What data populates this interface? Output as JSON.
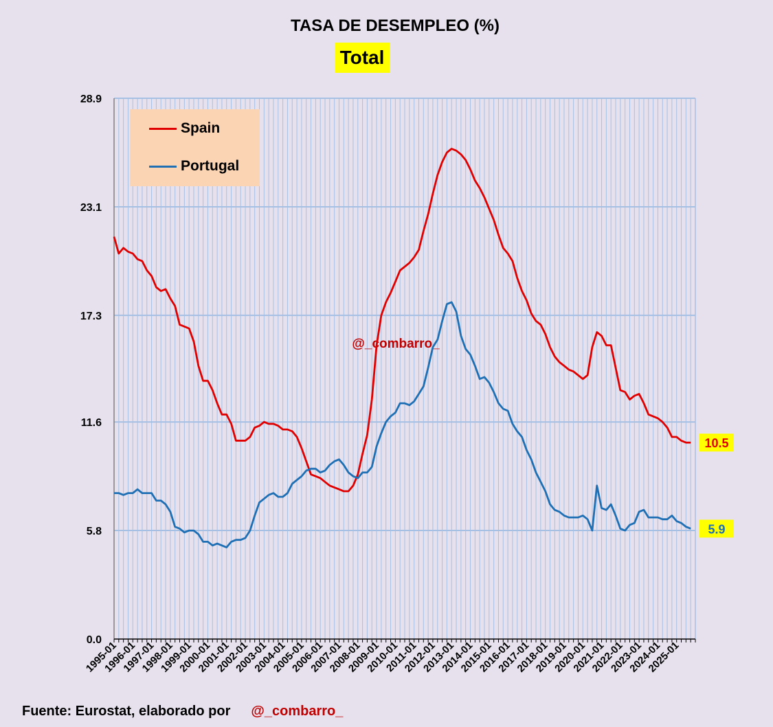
{
  "header": {
    "title": "TASA DE DESEMPLEO (%)",
    "subtitle": "Total"
  },
  "footer": {
    "source": "Fuente: Eurostat, elaborado por",
    "handle": "@_combarro_"
  },
  "watermark": "@_combarro_",
  "colors": {
    "spain": "#e00000",
    "portugal": "#1f6fb4",
    "grid": "#a6c0e4",
    "highlight": "#ffff00"
  },
  "chart_data": {
    "type": "line",
    "title": "TASA DE DESEMPLEO (%)",
    "subtitle": "Total",
    "x_tick_labels": [
      "1995-01",
      "1996-01",
      "1997-01",
      "1998-01",
      "1999-01",
      "2000-01",
      "2001-01",
      "2002-01",
      "2003-01",
      "2004-01",
      "2005-01",
      "2006-01",
      "2007-01",
      "2008-01",
      "2009-01",
      "2010-01",
      "2011-01",
      "2012-01",
      "2013-01",
      "2014-01",
      "2015-01",
      "2016-01",
      "2017-01",
      "2018-01",
      "2019-01",
      "2020-01",
      "2021-01",
      "2022-01",
      "2023-01",
      "2024-01",
      "2025-01"
    ],
    "y_ticks": [
      "0.0",
      "5.8",
      "11.6",
      "17.3",
      "23.1",
      "28.9"
    ],
    "y_tick_values": [
      0.0,
      5.8,
      11.6,
      17.3,
      23.1,
      28.9
    ],
    "ylim": [
      0,
      28.9
    ],
    "xlim": [
      1995.0,
      2026.0
    ],
    "legend": {
      "position": "top-left"
    },
    "series": [
      {
        "name": "Spain",
        "color": "#e00000",
        "end_label": "10.5",
        "points": [
          [
            1995.0,
            21.5
          ],
          [
            1995.25,
            20.6
          ],
          [
            1995.5,
            20.9
          ],
          [
            1995.75,
            20.7
          ],
          [
            1996.0,
            20.6
          ],
          [
            1996.25,
            20.3
          ],
          [
            1996.5,
            20.2
          ],
          [
            1996.75,
            19.7
          ],
          [
            1997.0,
            19.4
          ],
          [
            1997.25,
            18.8
          ],
          [
            1997.5,
            18.6
          ],
          [
            1997.75,
            18.7
          ],
          [
            1998.0,
            18.2
          ],
          [
            1998.25,
            17.8
          ],
          [
            1998.5,
            16.8
          ],
          [
            1998.75,
            16.7
          ],
          [
            1999.0,
            16.6
          ],
          [
            1999.25,
            15.9
          ],
          [
            1999.5,
            14.6
          ],
          [
            1999.75,
            13.8
          ],
          [
            2000.0,
            13.8
          ],
          [
            2000.25,
            13.3
          ],
          [
            2000.5,
            12.6
          ],
          [
            2000.75,
            12.0
          ],
          [
            2001.0,
            12.0
          ],
          [
            2001.25,
            11.5
          ],
          [
            2001.5,
            10.6
          ],
          [
            2001.75,
            10.6
          ],
          [
            2002.0,
            10.6
          ],
          [
            2002.25,
            10.8
          ],
          [
            2002.5,
            11.3
          ],
          [
            2002.75,
            11.4
          ],
          [
            2003.0,
            11.6
          ],
          [
            2003.25,
            11.5
          ],
          [
            2003.5,
            11.5
          ],
          [
            2003.75,
            11.4
          ],
          [
            2004.0,
            11.2
          ],
          [
            2004.25,
            11.2
          ],
          [
            2004.5,
            11.1
          ],
          [
            2004.75,
            10.8
          ],
          [
            2005.0,
            10.2
          ],
          [
            2005.25,
            9.5
          ],
          [
            2005.5,
            8.8
          ],
          [
            2005.75,
            8.7
          ],
          [
            2006.0,
            8.6
          ],
          [
            2006.25,
            8.4
          ],
          [
            2006.5,
            8.2
          ],
          [
            2006.75,
            8.1
          ],
          [
            2007.0,
            8.0
          ],
          [
            2007.25,
            7.9
          ],
          [
            2007.5,
            7.9
          ],
          [
            2007.75,
            8.2
          ],
          [
            2008.0,
            8.8
          ],
          [
            2008.25,
            9.9
          ],
          [
            2008.5,
            10.9
          ],
          [
            2008.75,
            12.8
          ],
          [
            2009.0,
            15.7
          ],
          [
            2009.25,
            17.3
          ],
          [
            2009.5,
            18.0
          ],
          [
            2009.75,
            18.5
          ],
          [
            2010.0,
            19.1
          ],
          [
            2010.25,
            19.7
          ],
          [
            2010.5,
            19.9
          ],
          [
            2010.75,
            20.1
          ],
          [
            2011.0,
            20.4
          ],
          [
            2011.25,
            20.8
          ],
          [
            2011.5,
            21.8
          ],
          [
            2011.75,
            22.7
          ],
          [
            2012.0,
            23.8
          ],
          [
            2012.25,
            24.8
          ],
          [
            2012.5,
            25.5
          ],
          [
            2012.75,
            26.0
          ],
          [
            2013.0,
            26.2
          ],
          [
            2013.25,
            26.1
          ],
          [
            2013.5,
            25.9
          ],
          [
            2013.75,
            25.6
          ],
          [
            2014.0,
            25.1
          ],
          [
            2014.25,
            24.5
          ],
          [
            2014.5,
            24.1
          ],
          [
            2014.75,
            23.6
          ],
          [
            2015.0,
            23.0
          ],
          [
            2015.25,
            22.4
          ],
          [
            2015.5,
            21.6
          ],
          [
            2015.75,
            20.9
          ],
          [
            2016.0,
            20.6
          ],
          [
            2016.25,
            20.2
          ],
          [
            2016.5,
            19.3
          ],
          [
            2016.75,
            18.6
          ],
          [
            2017.0,
            18.1
          ],
          [
            2017.25,
            17.4
          ],
          [
            2017.5,
            17.0
          ],
          [
            2017.75,
            16.8
          ],
          [
            2018.0,
            16.3
          ],
          [
            2018.25,
            15.6
          ],
          [
            2018.5,
            15.1
          ],
          [
            2018.75,
            14.8
          ],
          [
            2019.0,
            14.6
          ],
          [
            2019.25,
            14.4
          ],
          [
            2019.5,
            14.3
          ],
          [
            2019.75,
            14.1
          ],
          [
            2020.0,
            13.9
          ],
          [
            2020.25,
            14.1
          ],
          [
            2020.5,
            15.6
          ],
          [
            2020.75,
            16.4
          ],
          [
            2021.0,
            16.2
          ],
          [
            2021.25,
            15.7
          ],
          [
            2021.5,
            15.7
          ],
          [
            2021.75,
            14.5
          ],
          [
            2022.0,
            13.3
          ],
          [
            2022.25,
            13.2
          ],
          [
            2022.5,
            12.8
          ],
          [
            2022.75,
            13.0
          ],
          [
            2023.0,
            13.1
          ],
          [
            2023.25,
            12.6
          ],
          [
            2023.5,
            12.0
          ],
          [
            2023.75,
            11.9
          ],
          [
            2024.0,
            11.8
          ],
          [
            2024.25,
            11.6
          ],
          [
            2024.5,
            11.3
          ],
          [
            2024.75,
            10.8
          ],
          [
            2025.0,
            10.8
          ],
          [
            2025.25,
            10.6
          ],
          [
            2025.5,
            10.5
          ],
          [
            2025.75,
            10.5
          ]
        ]
      },
      {
        "name": "Portugal",
        "color": "#1f6fb4",
        "end_label": "5.9",
        "points": [
          [
            1995.0,
            7.8
          ],
          [
            1995.25,
            7.8
          ],
          [
            1995.5,
            7.7
          ],
          [
            1995.75,
            7.8
          ],
          [
            1996.0,
            7.8
          ],
          [
            1996.25,
            8.0
          ],
          [
            1996.5,
            7.8
          ],
          [
            1996.75,
            7.8
          ],
          [
            1997.0,
            7.8
          ],
          [
            1997.25,
            7.4
          ],
          [
            1997.5,
            7.4
          ],
          [
            1997.75,
            7.2
          ],
          [
            1998.0,
            6.8
          ],
          [
            1998.25,
            6.0
          ],
          [
            1998.5,
            5.9
          ],
          [
            1998.75,
            5.7
          ],
          [
            1999.0,
            5.8
          ],
          [
            1999.25,
            5.8
          ],
          [
            1999.5,
            5.6
          ],
          [
            1999.75,
            5.2
          ],
          [
            2000.0,
            5.2
          ],
          [
            2000.25,
            5.0
          ],
          [
            2000.5,
            5.1
          ],
          [
            2000.75,
            5.0
          ],
          [
            2001.0,
            4.9
          ],
          [
            2001.25,
            5.2
          ],
          [
            2001.5,
            5.3
          ],
          [
            2001.75,
            5.3
          ],
          [
            2002.0,
            5.4
          ],
          [
            2002.25,
            5.8
          ],
          [
            2002.5,
            6.6
          ],
          [
            2002.75,
            7.3
          ],
          [
            2003.0,
            7.5
          ],
          [
            2003.25,
            7.7
          ],
          [
            2003.5,
            7.8
          ],
          [
            2003.75,
            7.6
          ],
          [
            2004.0,
            7.6
          ],
          [
            2004.25,
            7.8
          ],
          [
            2004.5,
            8.3
          ],
          [
            2004.75,
            8.5
          ],
          [
            2005.0,
            8.7
          ],
          [
            2005.25,
            9.0
          ],
          [
            2005.5,
            9.1
          ],
          [
            2005.75,
            9.1
          ],
          [
            2006.0,
            8.9
          ],
          [
            2006.25,
            9.0
          ],
          [
            2006.5,
            9.3
          ],
          [
            2006.75,
            9.5
          ],
          [
            2007.0,
            9.6
          ],
          [
            2007.25,
            9.3
          ],
          [
            2007.5,
            8.9
          ],
          [
            2007.75,
            8.7
          ],
          [
            2008.0,
            8.6
          ],
          [
            2008.25,
            8.9
          ],
          [
            2008.5,
            8.9
          ],
          [
            2008.75,
            9.2
          ],
          [
            2009.0,
            10.3
          ],
          [
            2009.25,
            11.0
          ],
          [
            2009.5,
            11.6
          ],
          [
            2009.75,
            11.9
          ],
          [
            2010.0,
            12.1
          ],
          [
            2010.25,
            12.6
          ],
          [
            2010.5,
            12.6
          ],
          [
            2010.75,
            12.5
          ],
          [
            2011.0,
            12.7
          ],
          [
            2011.25,
            13.1
          ],
          [
            2011.5,
            13.5
          ],
          [
            2011.75,
            14.5
          ],
          [
            2012.0,
            15.6
          ],
          [
            2012.25,
            16.0
          ],
          [
            2012.5,
            17.0
          ],
          [
            2012.75,
            17.9
          ],
          [
            2013.0,
            18.0
          ],
          [
            2013.25,
            17.5
          ],
          [
            2013.5,
            16.2
          ],
          [
            2013.75,
            15.5
          ],
          [
            2014.0,
            15.2
          ],
          [
            2014.25,
            14.6
          ],
          [
            2014.5,
            13.9
          ],
          [
            2014.75,
            14.0
          ],
          [
            2015.0,
            13.7
          ],
          [
            2015.25,
            13.2
          ],
          [
            2015.5,
            12.6
          ],
          [
            2015.75,
            12.3
          ],
          [
            2016.0,
            12.2
          ],
          [
            2016.25,
            11.5
          ],
          [
            2016.5,
            11.1
          ],
          [
            2016.75,
            10.8
          ],
          [
            2017.0,
            10.1
          ],
          [
            2017.25,
            9.6
          ],
          [
            2017.5,
            8.9
          ],
          [
            2017.75,
            8.4
          ],
          [
            2018.0,
            7.9
          ],
          [
            2018.25,
            7.2
          ],
          [
            2018.5,
            6.9
          ],
          [
            2018.75,
            6.8
          ],
          [
            2019.0,
            6.6
          ],
          [
            2019.25,
            6.5
          ],
          [
            2019.5,
            6.5
          ],
          [
            2019.75,
            6.5
          ],
          [
            2020.0,
            6.6
          ],
          [
            2020.25,
            6.4
          ],
          [
            2020.5,
            5.8
          ],
          [
            2020.75,
            8.2
          ],
          [
            2021.0,
            7.0
          ],
          [
            2021.25,
            6.9
          ],
          [
            2021.5,
            7.2
          ],
          [
            2021.75,
            6.6
          ],
          [
            2022.0,
            5.9
          ],
          [
            2022.25,
            5.8
          ],
          [
            2022.5,
            6.1
          ],
          [
            2022.75,
            6.2
          ],
          [
            2023.0,
            6.8
          ],
          [
            2023.25,
            6.9
          ],
          [
            2023.5,
            6.5
          ],
          [
            2023.75,
            6.5
          ],
          [
            2024.0,
            6.5
          ],
          [
            2024.25,
            6.4
          ],
          [
            2024.5,
            6.4
          ],
          [
            2024.75,
            6.6
          ],
          [
            2025.0,
            6.3
          ],
          [
            2025.25,
            6.2
          ],
          [
            2025.5,
            6.0
          ],
          [
            2025.75,
            5.9
          ]
        ]
      }
    ]
  }
}
